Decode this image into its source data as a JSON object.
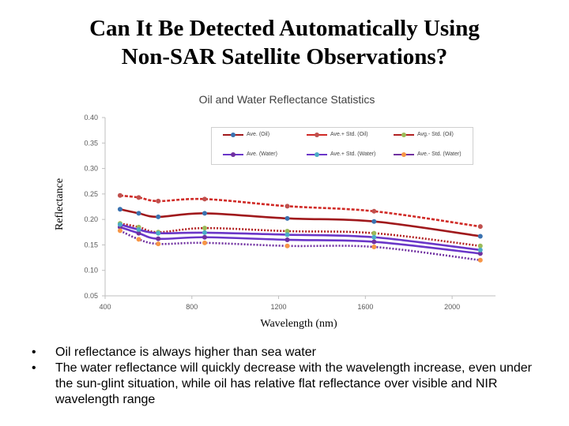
{
  "slide": {
    "title_line1": "Can It Be Detected Automatically Using",
    "title_line2": "Non-SAR Satellite Observations?",
    "bullets": [
      "Oil reflectance is always higher than sea water",
      "The water reflectance will quickly decrease with the wavelength increase, even under the sun-glint situation, while oil has relative flat reflectance  over visible and NIR wavelength range"
    ],
    "bullet_marker": "•"
  },
  "chart_data": {
    "type": "line",
    "title": "Oil and Water Reflectance Statistics",
    "xlabel": "Wavelength (nm)",
    "ylabel": "Reflectance",
    "xlim": [
      400,
      2200
    ],
    "ylim": [
      0.05,
      0.4
    ],
    "xticks": [
      400,
      800,
      1200,
      1600,
      2000
    ],
    "xtick_labels": [
      "400",
      "800",
      "1200",
      "1600",
      "2000"
    ],
    "yticks": [
      0.05,
      0.1,
      0.15,
      0.2,
      0.25,
      0.3,
      0.35,
      0.4
    ],
    "ytick_labels": [
      "0.05",
      "0.10",
      "0.15",
      "0.20",
      "0.25",
      "0.30",
      "0.35",
      "0.40"
    ],
    "grid": false,
    "legend_position": "top-right",
    "x": [
      469,
      555,
      645,
      859,
      1240,
      1640,
      2130
    ],
    "series": [
      {
        "name": "Ave. (Oil)",
        "color": "#a0191c",
        "marker_color": "#3a72b0",
        "values": [
          0.22,
          0.212,
          0.205,
          0.212,
          0.202,
          0.196,
          0.167
        ]
      },
      {
        "name": "Ave.+ Std. (Oil)",
        "color": "#d02a26",
        "marker_color": "#c0504d",
        "values": [
          0.247,
          0.243,
          0.236,
          0.24,
          0.226,
          0.216,
          0.186
        ]
      },
      {
        "name": "Avg.- Std. (Oil)",
        "color": "#b22222",
        "marker_color": "#9bbb59",
        "values": [
          0.192,
          0.185,
          0.175,
          0.183,
          0.177,
          0.173,
          0.148
        ]
      },
      {
        "name": "Ave. (Water)",
        "color": "#6a36c8",
        "marker_color": "#7030a0",
        "values": [
          0.185,
          0.173,
          0.162,
          0.165,
          0.16,
          0.156,
          0.133
        ]
      },
      {
        "name": "Ave.+ Std. (Water)",
        "color": "#6a36c8",
        "marker_color": "#4bacc6",
        "values": [
          0.19,
          0.18,
          0.173,
          0.174,
          0.17,
          0.165,
          0.14
        ]
      },
      {
        "name": "Ave.- Std. (Water)",
        "color": "#7030a0",
        "marker_color": "#f79646",
        "values": [
          0.178,
          0.161,
          0.152,
          0.154,
          0.148,
          0.146,
          0.12
        ]
      }
    ]
  }
}
